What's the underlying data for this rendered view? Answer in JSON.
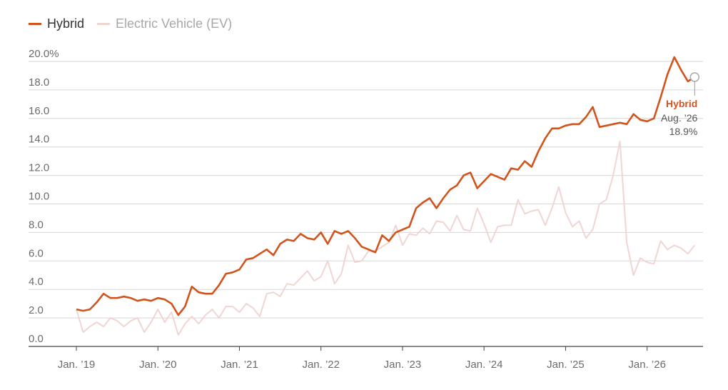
{
  "legend": [
    {
      "label": "Hybrid",
      "color": "#d2541c"
    },
    {
      "label": "Electric Vehicle (EV)",
      "color": "#f0d5d3"
    }
  ],
  "chart_data": {
    "type": "line",
    "y_unit_suffix": "%",
    "ylim": [
      0,
      20
    ],
    "yticks": [
      "0.0",
      "2.0",
      "4.0",
      "6.0",
      "8.0",
      "10.0",
      "12.0",
      "14.0",
      "16.0",
      "18.0",
      "20.0%"
    ],
    "xticks": [
      "Jan. ’19",
      "Jan. ’20",
      "Jan. ’21",
      "Jan. ’22",
      "Jan. ’23",
      "Jan. ’24",
      "Jan. ’25",
      "Jan. ’26"
    ],
    "x_start": "Jan. ’19",
    "grid": true,
    "legend_position": "top-left",
    "series": [
      {
        "name": "Hybrid",
        "color": "#d2541c",
        "values": [
          2.6,
          2.5,
          2.6,
          3.1,
          3.7,
          3.4,
          3.4,
          3.5,
          3.4,
          3.2,
          3.3,
          3.2,
          3.4,
          3.3,
          3.0,
          2.2,
          2.8,
          4.2,
          3.8,
          3.7,
          3.7,
          4.3,
          5.1,
          5.2,
          5.4,
          6.1,
          6.2,
          6.5,
          6.8,
          6.4,
          7.2,
          7.5,
          7.4,
          7.9,
          7.6,
          7.5,
          8.0,
          7.2,
          8.1,
          7.9,
          8.1,
          7.6,
          7.0,
          6.8,
          6.6,
          7.8,
          7.4,
          8.0,
          8.2,
          8.4,
          9.7,
          10.1,
          10.4,
          9.7,
          10.4,
          11.0,
          11.3,
          12.0,
          12.2,
          11.1,
          11.6,
          12.1,
          11.9,
          11.7,
          12.5,
          12.4,
          13.0,
          12.6,
          13.7,
          14.6,
          15.3,
          15.3,
          15.5,
          15.6,
          15.6,
          16.1,
          16.8,
          15.4,
          15.5,
          15.6,
          15.7,
          15.6,
          16.3,
          15.9,
          15.8,
          16.0,
          17.5,
          19.1,
          20.3,
          19.4,
          18.6,
          18.9
        ]
      },
      {
        "name": "Electric Vehicle (EV)",
        "color": "#f0d5d3",
        "values": [
          2.6,
          1.0,
          1.4,
          1.7,
          1.4,
          2.0,
          1.8,
          1.4,
          1.8,
          2.0,
          1.0,
          1.7,
          2.6,
          1.7,
          2.4,
          0.8,
          1.6,
          2.1,
          1.6,
          2.2,
          2.6,
          2.0,
          2.8,
          2.8,
          2.4,
          3.0,
          2.7,
          2.1,
          3.7,
          3.8,
          3.5,
          4.4,
          4.3,
          4.8,
          5.3,
          4.6,
          4.9,
          6.0,
          4.4,
          5.1,
          7.1,
          5.9,
          6.0,
          6.7,
          6.7,
          7.0,
          7.3,
          8.5,
          7.1,
          7.9,
          7.8,
          8.3,
          7.9,
          8.8,
          8.7,
          8.1,
          9.2,
          8.2,
          8.1,
          9.7,
          8.6,
          7.3,
          8.4,
          8.5,
          8.5,
          10.3,
          9.3,
          9.5,
          9.6,
          8.5,
          9.7,
          11.2,
          9.4,
          8.4,
          8.8,
          7.6,
          8.2,
          10.0,
          10.3,
          12.0,
          14.4,
          7.3,
          5.0,
          6.2,
          5.9,
          5.8,
          7.4,
          6.8,
          7.1,
          6.9,
          6.5,
          7.1
        ]
      }
    ],
    "annotation": {
      "series": "Hybrid",
      "label": "Hybrid",
      "date": "Aug. ’26",
      "value": "18.9%"
    }
  }
}
